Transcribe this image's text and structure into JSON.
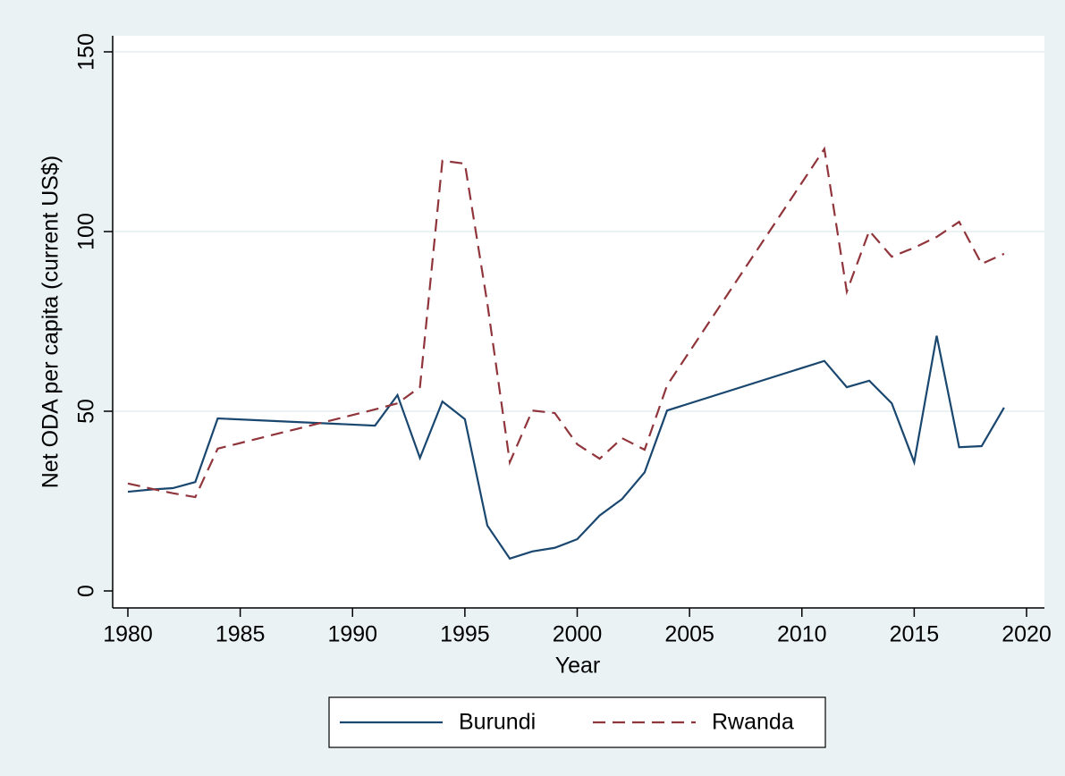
{
  "chart_data": {
    "type": "line",
    "xlabel": "Year",
    "ylabel": "Net ODA per capita (current US$)",
    "x": [
      1980,
      1981,
      1982,
      1983,
      1984,
      1991,
      1992,
      1993,
      1994,
      1995,
      1996,
      1997,
      1998,
      1999,
      2000,
      2001,
      2002,
      2003,
      2004,
      2011,
      2012,
      2013,
      2014,
      2015,
      2016,
      2017,
      2018,
      2019
    ],
    "series": [
      {
        "name": "Burundi",
        "color": "#1a476f",
        "line_style": "solid",
        "values": [
          27.6,
          28.2,
          28.6,
          30.3,
          48,
          46,
          54.5,
          37,
          52.7,
          47.8,
          18.2,
          9,
          11,
          12,
          14.4,
          21,
          25.6,
          33,
          50.2,
          64,
          56.7,
          58.5,
          52.2,
          35.8,
          71,
          40,
          40.3,
          51
        ]
      },
      {
        "name": "Rwanda",
        "color": "#90353b",
        "line_style": "dashed",
        "values": [
          29.9,
          28.5,
          27.2,
          26.1,
          39.6,
          50.5,
          52.2,
          56.7,
          119.7,
          118.9,
          80,
          35.8,
          50.2,
          49.5,
          40.8,
          36.8,
          42.5,
          39.3,
          57.2,
          123,
          83.3,
          100.2,
          93,
          95.5,
          98.5,
          102.7,
          91,
          93.8
        ]
      }
    ],
    "xlim": [
      1980,
      2020
    ],
    "xticks": [
      1980,
      1985,
      1990,
      1995,
      2000,
      2005,
      2010,
      2015,
      2020
    ],
    "ylim": [
      0,
      150
    ],
    "yticks": [
      0,
      50,
      100,
      150
    ],
    "grid": true,
    "legend": "bottom"
  }
}
